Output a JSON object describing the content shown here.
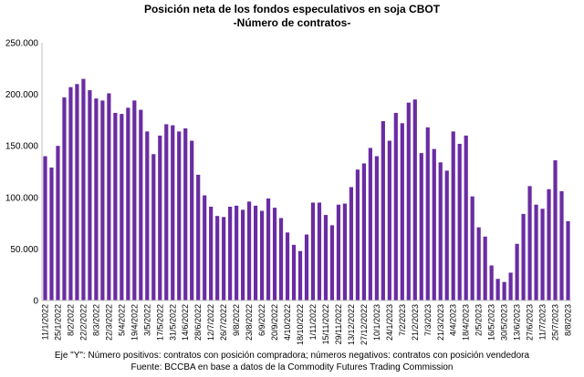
{
  "chart_data": {
    "type": "bar",
    "title": "Posición neta de los fondos especulativos en soja CBOT",
    "subtitle": "-Número de contratos-",
    "ylim": [
      0,
      250000
    ],
    "yticks": [
      "0",
      "50.000",
      "100.000",
      "150.000",
      "200.000",
      "250.000"
    ],
    "ytick_values": [
      0,
      50000,
      100000,
      150000,
      200000,
      250000
    ],
    "grid": false,
    "color": "#6a2ca3",
    "xtick_labels": [
      "11/1/2022",
      "25/1/2022",
      "8/2/2022",
      "22/2/2022",
      "8/3/2022",
      "22/3/2022",
      "5/4/2022",
      "19/4/2022",
      "3/5/2022",
      "17/5/2022",
      "31/5/2022",
      "14/6/2022",
      "28/6/2022",
      "12/7/2022",
      "26/7/2022",
      "9/8/2022",
      "23/8/2022",
      "6/9/2022",
      "20/9/2022",
      "4/10/2022",
      "18/10/2022",
      "1/11/2022",
      "15/11/2022",
      "29/11/2022",
      "13/12/2022",
      "27/12/2022",
      "10/1/2023",
      "24/1/2023",
      "7/2/2023",
      "21/2/2023",
      "7/3/2023",
      "21/3/2023",
      "4/4/2023",
      "18/4/2023",
      "2/5/2023",
      "16/5/2023",
      "30/5/2023",
      "13/6/2023",
      "27/6/2023",
      "11/7/2023",
      "25/7/2023",
      "8/8/2023"
    ],
    "values": [
      140000,
      129000,
      150000,
      197000,
      207000,
      210000,
      215000,
      204000,
      196000,
      194000,
      201000,
      182000,
      181000,
      187000,
      194000,
      185000,
      164000,
      142000,
      160000,
      171000,
      170000,
      164000,
      167000,
      155000,
      122000,
      102000,
      91000,
      82000,
      81000,
      91000,
      92000,
      88000,
      96000,
      92000,
      87000,
      99000,
      90000,
      80000,
      66000,
      54000,
      48000,
      64000,
      95000,
      95000,
      83000,
      73000,
      93000,
      94000,
      110000,
      127000,
      133000,
      148000,
      140000,
      174000,
      155000,
      182000,
      172000,
      192000,
      195000,
      143000,
      168000,
      147000,
      134000,
      126000,
      164000,
      152000,
      160000,
      101000,
      71000,
      62000,
      34000,
      21000,
      18000,
      27000,
      55000,
      84000,
      111000,
      93000,
      89000,
      108000,
      136000,
      106000,
      77000
    ]
  },
  "footer": {
    "line1": "Eje \"Y\": Número positivos: contratos con posición compradora; números negativos: contratos con posición vendedora",
    "line2": "Fuente: BCCBA en base a datos de la Commodity Futures Trading Commission"
  }
}
